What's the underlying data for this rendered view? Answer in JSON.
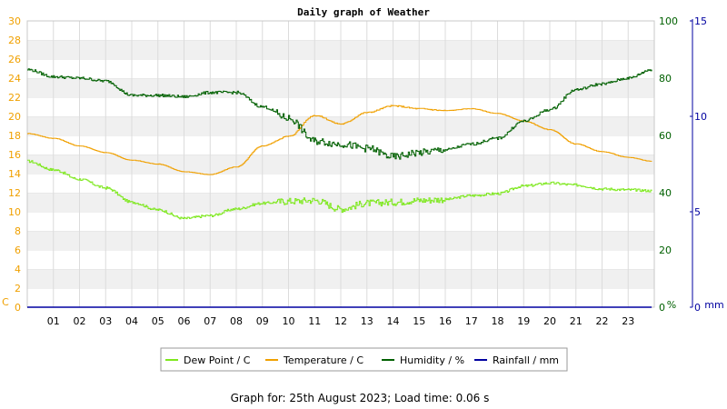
{
  "chart_data": {
    "type": "line",
    "title": "Daily graph of Weather",
    "footer": "Graph for: 25th August 2023; Load time: 0.06 s",
    "x_ticks": [
      "01",
      "02",
      "03",
      "04",
      "05",
      "06",
      "07",
      "08",
      "09",
      "10",
      "11",
      "12",
      "13",
      "14",
      "15",
      "16",
      "17",
      "18",
      "19",
      "20",
      "21",
      "22",
      "23"
    ],
    "xlim": [
      0,
      24
    ],
    "grid": true,
    "legend_position": "bottom-center",
    "axes": {
      "celsius": {
        "unit": "C",
        "ylim": [
          0,
          30
        ],
        "ticks": [
          "0",
          "2",
          "4",
          "6",
          "8",
          "10",
          "12",
          "14",
          "16",
          "18",
          "20",
          "22",
          "24",
          "26",
          "28",
          "30"
        ],
        "color": "#f0a000"
      },
      "percent": {
        "unit": "%",
        "ylim": [
          0,
          100
        ],
        "ticks": [
          "0",
          "20",
          "40",
          "60",
          "80",
          "100"
        ],
        "color": "#006000"
      },
      "mm": {
        "unit": "mm",
        "ylim": [
          0,
          15
        ],
        "ticks": [
          "0",
          "5",
          "10",
          "15"
        ],
        "color": "#0000a0"
      }
    },
    "series": [
      {
        "name": "Dew Point / C",
        "axis": "celsius",
        "color": "#7ee81e",
        "x": [
          0,
          1,
          2,
          3,
          4,
          5,
          6,
          7,
          8,
          9,
          10,
          11,
          12,
          13,
          14,
          15,
          16,
          17,
          18,
          19,
          20,
          21,
          22,
          23,
          23.9
        ],
        "y": [
          15.3,
          14.4,
          13.4,
          12.5,
          11.0,
          10.2,
          9.3,
          9.6,
          10.3,
          10.9,
          11.1,
          11.2,
          10.3,
          10.9,
          11.0,
          11.2,
          11.3,
          11.7,
          11.9,
          12.7,
          13.0,
          12.8,
          12.4,
          12.3,
          12.2
        ]
      },
      {
        "name": "Temperature / C",
        "axis": "celsius",
        "color": "#f0a000",
        "x": [
          0,
          1,
          2,
          3,
          4,
          5,
          6,
          7,
          8,
          9,
          10,
          11,
          12,
          13,
          14,
          15,
          16,
          17,
          18,
          19,
          20,
          21,
          22,
          23,
          23.9
        ],
        "y": [
          18.2,
          17.7,
          16.9,
          16.2,
          15.4,
          15.0,
          14.2,
          13.9,
          14.7,
          16.9,
          17.9,
          20.1,
          19.2,
          20.4,
          21.1,
          20.8,
          20.6,
          20.8,
          20.3,
          19.5,
          18.6,
          17.1,
          16.3,
          15.7,
          15.3
        ]
      },
      {
        "name": "Humidity / %",
        "axis": "percent",
        "color": "#006000",
        "x": [
          0,
          1,
          2,
          3,
          4,
          5,
          6,
          7,
          8,
          9,
          10,
          11,
          12,
          13,
          14,
          15,
          16,
          17,
          18,
          19,
          20,
          21,
          22,
          23,
          23.9
        ],
        "y": [
          83,
          80.5,
          80,
          79,
          74,
          74,
          73.5,
          75,
          75,
          70,
          66,
          58,
          57,
          55.5,
          52.5,
          54,
          55,
          57,
          59,
          65,
          69,
          76,
          78,
          80,
          83
        ]
      },
      {
        "name": "Rainfall / mm",
        "axis": "mm",
        "color": "#0000a0",
        "x": [
          0,
          23.9
        ],
        "y": [
          0,
          0
        ]
      }
    ]
  }
}
